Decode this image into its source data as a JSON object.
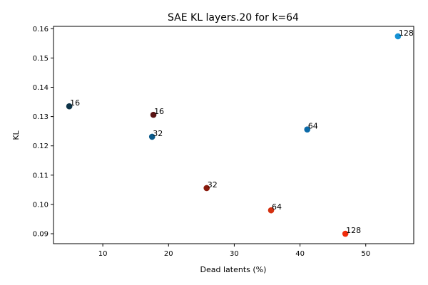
{
  "chart_data": {
    "type": "scatter",
    "title": "SAE KL layers.20 for k=64",
    "xlabel": "Dead latents (%)",
    "ylabel": "KL",
    "xlim": [
      2.5,
      57.3
    ],
    "ylim": [
      0.0866,
      0.1608
    ],
    "xticks": [
      10,
      20,
      30,
      40,
      50
    ],
    "yticks": [
      0.09,
      0.1,
      0.11,
      0.12,
      0.13,
      0.14,
      0.15,
      0.16
    ],
    "grid": false,
    "points": [
      {
        "x": 4.9,
        "y": 0.1335,
        "label": "16",
        "color": "#0d3348"
      },
      {
        "x": 17.5,
        "y": 0.1231,
        "label": "32",
        "color": "#0b5a8a"
      },
      {
        "x": 41.1,
        "y": 0.1256,
        "label": "64",
        "color": "#0b6aa8"
      },
      {
        "x": 54.9,
        "y": 0.1574,
        "label": "128",
        "color": "#1591d4"
      },
      {
        "x": 17.7,
        "y": 0.1306,
        "label": "16",
        "color": "#5a1414"
      },
      {
        "x": 25.8,
        "y": 0.1056,
        "label": "32",
        "color": "#8a1a0c"
      },
      {
        "x": 35.6,
        "y": 0.098,
        "label": "64",
        "color": "#d4300f"
      },
      {
        "x": 46.9,
        "y": 0.09,
        "label": "128",
        "color": "#f02b0a"
      }
    ]
  }
}
